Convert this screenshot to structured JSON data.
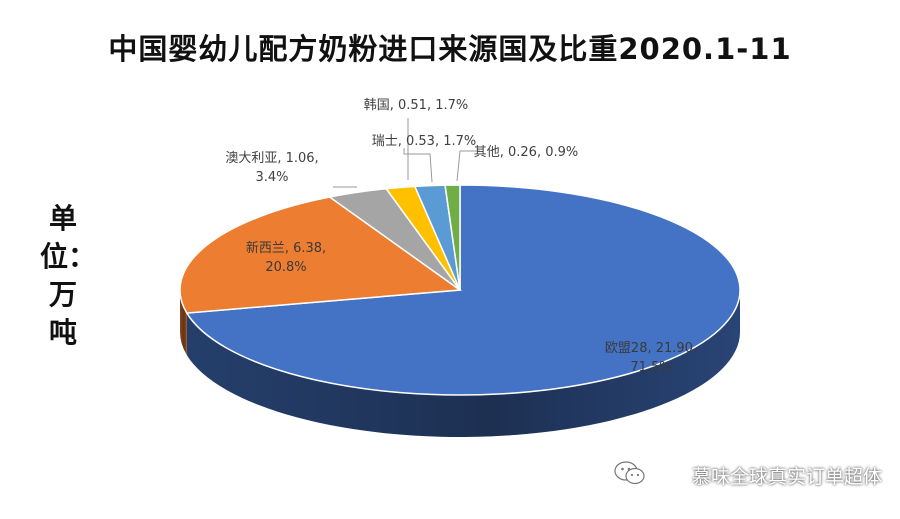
{
  "chart_data": {
    "type": "pie",
    "title": "中国婴幼儿配方奶粉进口来源国及比重2020.1-11",
    "unit_label": "单位：万吨",
    "slices": [
      {
        "name": "欧盟28",
        "value": 21.9,
        "percent": "71.5%",
        "label": "欧盟28, 21.90,",
        "label2": "71.5%",
        "color": "#4472C4"
      },
      {
        "name": "新西兰",
        "value": 6.38,
        "percent": "20.8%",
        "label": "新西兰, 6.38,",
        "label2": "20.8%",
        "color": "#ED7D31"
      },
      {
        "name": "澳大利亚",
        "value": 1.06,
        "percent": "3.4%",
        "label": "澳大利亚, 1.06,",
        "label2": "3.4%",
        "color": "#A5A5A5"
      },
      {
        "name": "韩国",
        "value": 0.51,
        "percent": "1.7%",
        "label": "韩国, 0.51, 1.7%",
        "label2": "",
        "color": "#FFC000"
      },
      {
        "name": "瑞士",
        "value": 0.53,
        "percent": "1.7%",
        "label": "瑞士, 0.53, 1.7%",
        "label2": "",
        "color": "#5B9BD5"
      },
      {
        "name": "其他",
        "value": 0.26,
        "percent": "0.9%",
        "label": "其他, 0.26, 0.9%",
        "label2": "",
        "color": "#70AD47"
      }
    ]
  },
  "watermark": {
    "text": "慕味全球真实订单超体",
    "icon": "wechat-icon"
  }
}
